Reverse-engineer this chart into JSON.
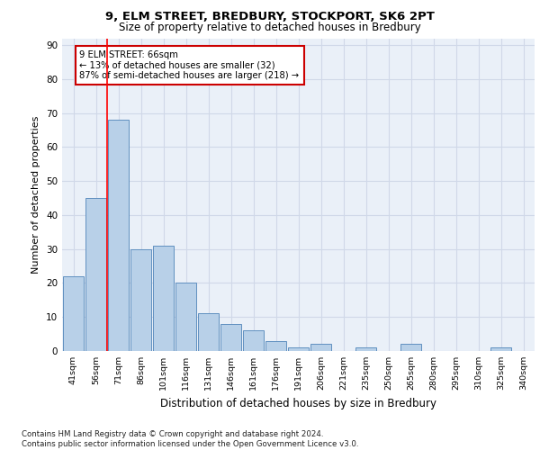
{
  "title1": "9, ELM STREET, BREDBURY, STOCKPORT, SK6 2PT",
  "title2": "Size of property relative to detached houses in Bredbury",
  "xlabel": "Distribution of detached houses by size in Bredbury",
  "ylabel": "Number of detached properties",
  "categories": [
    "41sqm",
    "56sqm",
    "71sqm",
    "86sqm",
    "101sqm",
    "116sqm",
    "131sqm",
    "146sqm",
    "161sqm",
    "176sqm",
    "191sqm",
    "206sqm",
    "221sqm",
    "235sqm",
    "250sqm",
    "265sqm",
    "280sqm",
    "295sqm",
    "310sqm",
    "325sqm",
    "340sqm"
  ],
  "values": [
    22,
    45,
    68,
    30,
    31,
    20,
    11,
    8,
    6,
    3,
    1,
    2,
    0,
    1,
    0,
    2,
    0,
    0,
    0,
    1,
    0
  ],
  "bar_color": "#b8d0e8",
  "bar_edge_color": "#6090c0",
  "red_line_x": 1.5,
  "annotation_text": "9 ELM STREET: 66sqm\n← 13% of detached houses are smaller (32)\n87% of semi-detached houses are larger (218) →",
  "annotation_box_color": "#ffffff",
  "annotation_box_edge": "#cc0000",
  "grid_color": "#d0d8e8",
  "background_color": "#eaf0f8",
  "footer_text": "Contains HM Land Registry data © Crown copyright and database right 2024.\nContains public sector information licensed under the Open Government Licence v3.0.",
  "ylim": [
    0,
    92
  ],
  "yticks": [
    0,
    10,
    20,
    30,
    40,
    50,
    60,
    70,
    80,
    90
  ]
}
